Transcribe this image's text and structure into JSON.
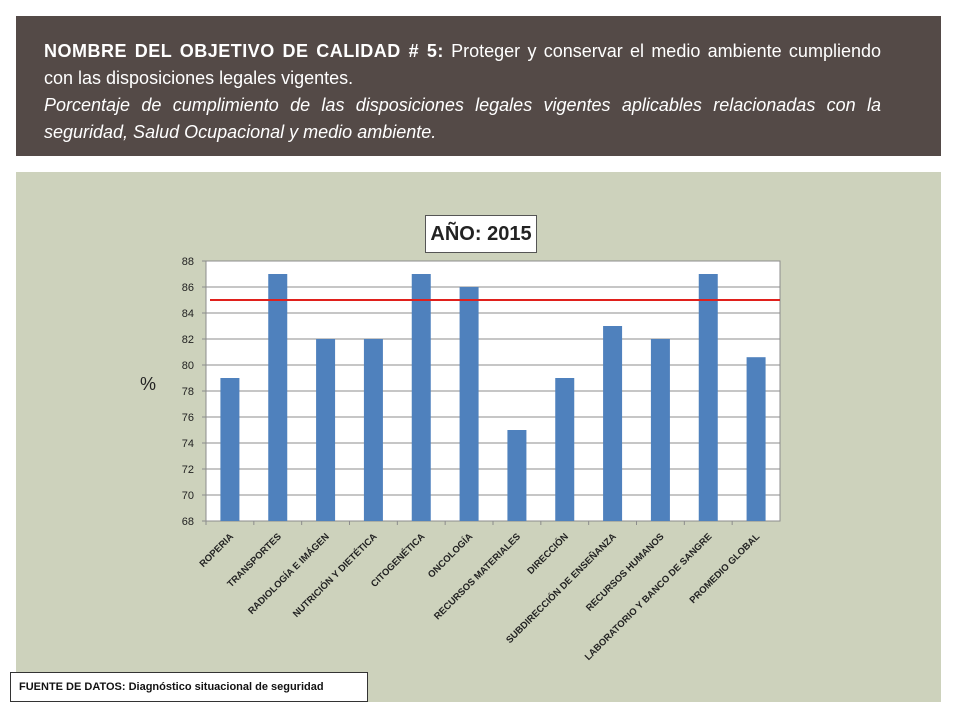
{
  "header": {
    "name_bold": "NOMBRE DEL OBJETIVO DE CALIDAD # 5:",
    "name_rest": " Proteger y conservar el medio ambiente cumpliendo con las disposiciones legales vigentes.",
    "subtitle": "Porcentaje de cumplimiento  de las disposiciones legales vigentes aplicables relacionadas con la seguridad, Salud Ocupacional  y medio ambiente."
  },
  "source": "FUENTE DE DATOS: Diagnóstico situacional de seguridad",
  "colors": {
    "bar": "#4f81bd",
    "target_line": "#e0201c",
    "panel": "#cdd2bc",
    "header": "#544a47"
  },
  "chart_data": {
    "type": "bar",
    "title": "AÑO: 2015",
    "ylabel": "%",
    "xlabel": "",
    "ylim": [
      68,
      88
    ],
    "yticks": [
      68,
      70,
      72,
      74,
      76,
      78,
      80,
      82,
      84,
      86,
      88
    ],
    "grid": true,
    "target_line": 85,
    "categories": [
      "ROPERIA",
      "TRANSPORTES",
      "RADIOLOGÍA E IMÁGEN",
      "NUTRICIÓN Y DIETÉTICA",
      "CITOGENÉTICA",
      "ONCOLOGÍA",
      "RECURSOS MATERIALES",
      "DIRECCIÓN",
      "SUBDIRECCIÓN DE ENSEÑANZA",
      "RECURSOS HUMANOS",
      "LABORATORIO Y BANCO DE SANGRE",
      "PROMEDIO GLOBAL"
    ],
    "values": [
      79,
      87,
      82,
      82,
      87,
      86,
      75,
      79,
      83,
      82,
      87,
      80.6
    ]
  }
}
